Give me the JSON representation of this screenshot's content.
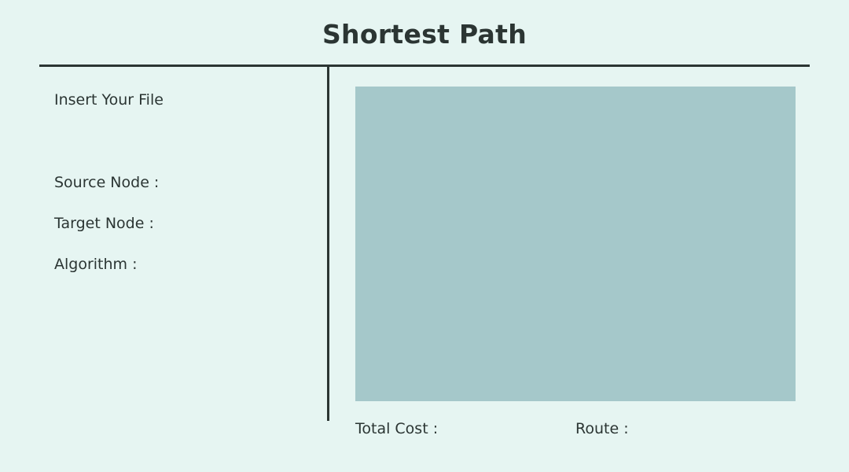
{
  "header": {
    "title": "Shortest Path"
  },
  "sidebar": {
    "insert_file_label": "Insert Your File",
    "source_node_label": "Source Node :",
    "target_node_label": "Target Node :",
    "algorithm_label": "Algorithm :"
  },
  "results": {
    "total_cost_label": "Total Cost :",
    "route_label": "Route :"
  },
  "colors": {
    "background": "#e6f5f2",
    "text": "#2b3533",
    "canvas": "#a5c8ca"
  }
}
